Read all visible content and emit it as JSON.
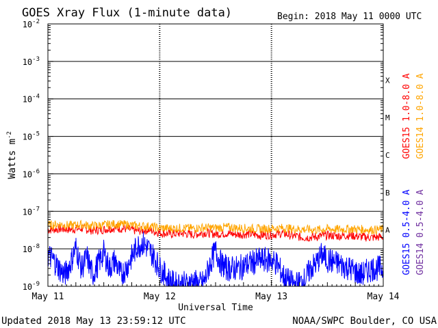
{
  "chart_data": {
    "type": "line",
    "title": "GOES Xray Flux (1-minute data)",
    "begin_label": "Begin:  2018 May 11 0000 UTC",
    "xlabel": "Universal Time",
    "ylabel_base": "Watts m",
    "ylabel_exp": "-2",
    "x_ticks": [
      "May 11",
      "May 12",
      "May 13",
      "May 14"
    ],
    "xlim_days": [
      0,
      3
    ],
    "y_scale": "log",
    "ylim": [
      1e-09,
      0.01
    ],
    "y_ticks": [
      {
        "base": "10",
        "exp": "-9",
        "value": 1e-09
      },
      {
        "base": "10",
        "exp": "-8",
        "value": 1e-08
      },
      {
        "base": "10",
        "exp": "-7",
        "value": 1e-07
      },
      {
        "base": "10",
        "exp": "-6",
        "value": 1e-06
      },
      {
        "base": "10",
        "exp": "-5",
        "value": 1e-05
      },
      {
        "base": "10",
        "exp": "-4",
        "value": 0.0001
      },
      {
        "base": "10",
        "exp": "-3",
        "value": 0.001
      },
      {
        "base": "10",
        "exp": "-2",
        "value": 0.01
      }
    ],
    "flare_classes": [
      {
        "label": "A",
        "value": 1e-08
      },
      {
        "label": "B",
        "value": 1e-07
      },
      {
        "label": "C",
        "value": 1e-06
      },
      {
        "label": "M",
        "value": 1e-05
      },
      {
        "label": "X",
        "value": 0.0001
      }
    ],
    "series": [
      {
        "name": "GOES15 1.0-8.0 A",
        "color": "#ff0000",
        "points": [
          [
            0,
            3.2e-08
          ],
          [
            0.1,
            3.4e-08
          ],
          [
            0.2,
            3.3e-08
          ],
          [
            0.3,
            3.5e-08
          ],
          [
            0.4,
            3.1e-08
          ],
          [
            0.5,
            3.3e-08
          ],
          [
            0.6,
            3.6e-08
          ],
          [
            0.7,
            3.4e-08
          ],
          [
            0.8,
            3e-08
          ],
          [
            0.9,
            3.2e-08
          ],
          [
            1.0,
            2.7e-08
          ],
          [
            1.1,
            2.5e-08
          ],
          [
            1.2,
            2.6e-08
          ],
          [
            1.3,
            2.4e-08
          ],
          [
            1.4,
            2.7e-08
          ],
          [
            1.5,
            2.5e-08
          ],
          [
            1.6,
            2.6e-08
          ],
          [
            1.7,
            2.4e-08
          ],
          [
            1.8,
            2.5e-08
          ],
          [
            1.9,
            2.3e-08
          ],
          [
            2.0,
            2.4e-08
          ],
          [
            2.1,
            2.6e-08
          ],
          [
            2.2,
            2.2e-08
          ],
          [
            2.3,
            2e-08
          ],
          [
            2.4,
            2.1e-08
          ],
          [
            2.5,
            2.3e-08
          ],
          [
            2.6,
            2.2e-08
          ],
          [
            2.7,
            2.3e-08
          ],
          [
            2.8,
            2.1e-08
          ],
          [
            2.9,
            2e-08
          ],
          [
            3.0,
            2.1e-08
          ]
        ]
      },
      {
        "name": "GOES14 1.0-8.0 A",
        "color": "#ffa500",
        "points": [
          [
            0,
            4.3e-08
          ],
          [
            0.1,
            4.5e-08
          ],
          [
            0.2,
            4.2e-08
          ],
          [
            0.3,
            4.4e-08
          ],
          [
            0.4,
            4.1e-08
          ],
          [
            0.5,
            4.3e-08
          ],
          [
            0.6,
            4.6e-08
          ],
          [
            0.7,
            4.4e-08
          ],
          [
            0.8,
            4.1e-08
          ],
          [
            0.9,
            4e-08
          ],
          [
            1.0,
            3.6e-08
          ],
          [
            1.1,
            3.5e-08
          ],
          [
            1.2,
            3.6e-08
          ],
          [
            1.3,
            3.5e-08
          ],
          [
            1.4,
            3.7e-08
          ],
          [
            1.5,
            3.6e-08
          ],
          [
            1.6,
            3.8e-08
          ],
          [
            1.7,
            3.6e-08
          ],
          [
            1.8,
            3.5e-08
          ],
          [
            1.9,
            3.4e-08
          ],
          [
            2.0,
            3.5e-08
          ],
          [
            2.1,
            3.6e-08
          ],
          [
            2.2,
            3.4e-08
          ],
          [
            2.3,
            3.3e-08
          ],
          [
            2.4,
            3.2e-08
          ],
          [
            2.5,
            3.4e-08
          ],
          [
            2.6,
            3.3e-08
          ],
          [
            2.7,
            3.4e-08
          ],
          [
            2.8,
            3.3e-08
          ],
          [
            2.9,
            3.2e-08
          ],
          [
            3.0,
            3.3e-08
          ]
        ]
      },
      {
        "name": "GOES15 0.5-4.0 A",
        "color": "#0000ff",
        "points": [
          [
            0,
            7e-09
          ],
          [
            0.05,
            5e-09
          ],
          [
            0.1,
            3e-09
          ],
          [
            0.15,
            2e-09
          ],
          [
            0.2,
            4e-09
          ],
          [
            0.25,
            1.1e-08
          ],
          [
            0.3,
            3e-09
          ],
          [
            0.35,
            6e-09
          ],
          [
            0.4,
            2e-09
          ],
          [
            0.45,
            4e-09
          ],
          [
            0.5,
            8e-09
          ],
          [
            0.55,
            3e-09
          ],
          [
            0.6,
            5e-09
          ],
          [
            0.65,
            2e-09
          ],
          [
            0.7,
            3e-09
          ],
          [
            0.75,
            6e-09
          ],
          [
            0.8,
            1.2e-08
          ],
          [
            0.85,
            1.4e-08
          ],
          [
            0.9,
            1e-08
          ],
          [
            0.95,
            6e-09
          ],
          [
            1.0,
            3e-09
          ],
          [
            1.05,
            2e-09
          ],
          [
            1.1,
            1.3e-09
          ],
          [
            1.15,
            1.1e-09
          ],
          [
            1.2,
            1.2e-09
          ],
          [
            1.25,
            1.1e-09
          ],
          [
            1.3,
            1.4e-09
          ],
          [
            1.35,
            1.1e-09
          ],
          [
            1.4,
            1.3e-09
          ],
          [
            1.45,
            4e-09
          ],
          [
            1.5,
            9e-09
          ],
          [
            1.55,
            4e-09
          ],
          [
            1.6,
            3e-09
          ],
          [
            1.7,
            3e-09
          ],
          [
            1.8,
            4e-09
          ],
          [
            1.9,
            5e-09
          ],
          [
            2.0,
            5e-09
          ],
          [
            2.05,
            4e-09
          ],
          [
            2.1,
            2e-09
          ],
          [
            2.15,
            1.4e-09
          ],
          [
            2.2,
            1.1e-09
          ],
          [
            2.25,
            1.2e-09
          ],
          [
            2.3,
            1.5e-09
          ],
          [
            2.35,
            3e-09
          ],
          [
            2.4,
            4e-09
          ],
          [
            2.45,
            7e-09
          ],
          [
            2.5,
            5e-09
          ],
          [
            2.6,
            4e-09
          ],
          [
            2.7,
            3e-09
          ],
          [
            2.8,
            2e-09
          ],
          [
            2.9,
            3e-09
          ],
          [
            3.0,
            3e-09
          ]
        ]
      },
      {
        "name": "GOES14 0.5-4.0 A",
        "color": "#7030a0",
        "points": []
      }
    ]
  },
  "footer": {
    "updated": "Updated 2018 May 13 23:59:12 UTC",
    "credit": "NOAA/SWPC Boulder, CO USA"
  }
}
